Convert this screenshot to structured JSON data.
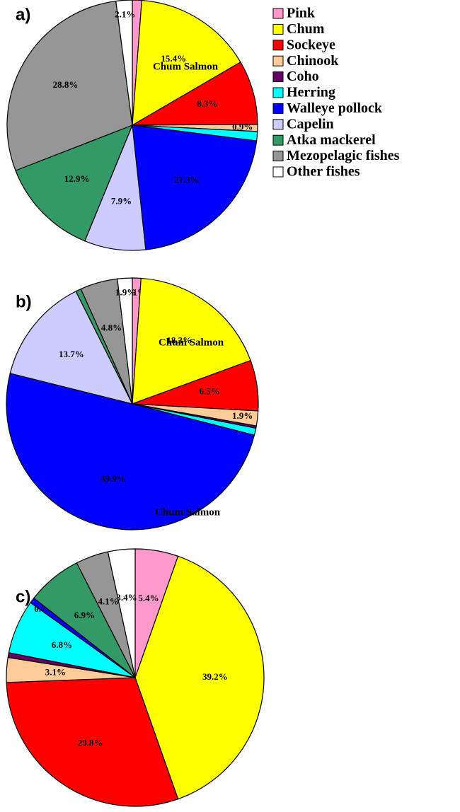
{
  "legend": {
    "labels": [
      "Pink",
      "Chum",
      "Sockeye",
      "Chinook",
      "Coho",
      "Herring",
      "Walleye pollock",
      "Capelin",
      "Atka mackerel",
      "Mezopelagic fishes",
      "Other fishes"
    ],
    "colors": [
      "#ff99cc",
      "#ffff00",
      "#ff0000",
      "#ffcc99",
      "#660066",
      "#00ffff",
      "#0000ff",
      "#ccccff",
      "#339966",
      "#969696",
      "#ffffff"
    ]
  },
  "chart_data": [
    {
      "type": "pie",
      "title": "a)",
      "annotation": "Chum Salmon",
      "values": [
        1.2,
        15.4,
        8.3,
        0.9,
        0,
        1.2,
        21.3,
        7.9,
        12.9,
        28.8,
        2.1
      ],
      "value_labels": [
        null,
        "15.4%",
        "8.3%",
        "0.9%",
        null,
        null,
        "21.3%",
        "7.9%",
        "12.9%",
        "28.8%",
        "2.1%"
      ]
    },
    {
      "type": "pie",
      "title": "b)",
      "annotation": "Chum Salmon",
      "values": [
        1.1,
        18.3,
        6.5,
        1.9,
        0.3,
        0.9,
        49.9,
        13.7,
        0.7,
        4.8,
        1.9
      ],
      "value_labels": [
        "1.1%",
        "18,3%",
        "6.5%",
        "1.9%",
        null,
        null,
        "49.9%",
        "13.7%",
        null,
        "4.8%",
        "1.9%"
      ]
    },
    {
      "type": "pie",
      "title": "c)",
      "annotation": "Chum Salmon",
      "values": [
        5.4,
        39.2,
        29.8,
        3.1,
        0.6,
        6.8,
        0.7,
        0,
        6.9,
        4.1,
        3.4
      ],
      "value_labels": [
        "5.4%",
        "39.2%",
        "29.8%",
        "3.1%",
        null,
        "6.8%",
        "0.7%",
        null,
        "6.9%",
        "4.1%",
        "3.4%"
      ]
    }
  ]
}
